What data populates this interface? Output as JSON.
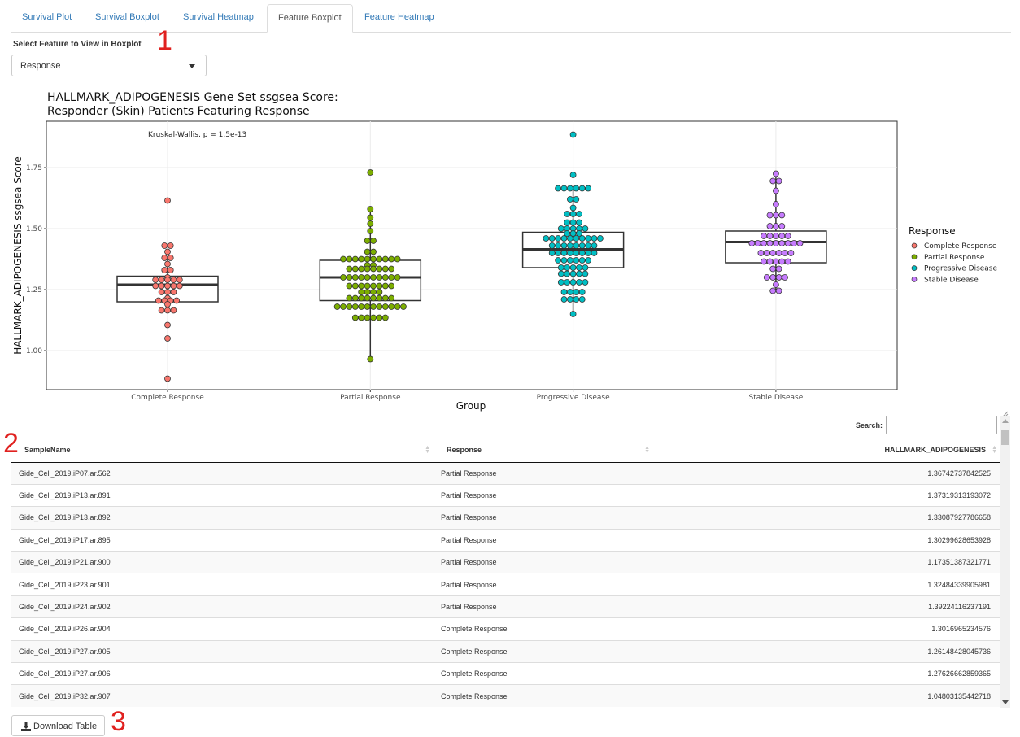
{
  "tabs": [
    {
      "label": "Survival Plot"
    },
    {
      "label": "Survival Boxplot"
    },
    {
      "label": "Survival Heatmap"
    },
    {
      "label": "Feature Boxplot"
    },
    {
      "label": "Feature Heatmap"
    }
  ],
  "active_tab": "Feature Boxplot",
  "feature_select": {
    "label": "Select Feature to View in Boxplot",
    "value": "Response"
  },
  "annotations": [
    "1",
    "2",
    "3"
  ],
  "chart_data": {
    "type": "boxplot+beeswarm",
    "title_line1": "HALLMARK_ADIPOGENESIS Gene Set ssgsea Score:",
    "title_line2": "Responder (Skin) Patients Featuring Response",
    "xlabel": "Group",
    "ylabel": "HALLMARK_ADIPOGENESIS ssgsea Score",
    "stat_annotation": "Kruskal-Wallis, p = 1.5e-13",
    "ylim": [
      0.84,
      1.94
    ],
    "yticks": [
      "1.00",
      "1.25",
      "1.50",
      "1.75"
    ],
    "grid": true,
    "legend_title": "Response",
    "legend_position": "right",
    "categories": [
      "Complete Response",
      "Partial Response",
      "Progressive Disease",
      "Stable Disease"
    ],
    "colors": [
      "#f8766d",
      "#7cae00",
      "#00bfc4",
      "#c77cff"
    ],
    "boxes": [
      {
        "q1": 1.2,
        "median": 1.27,
        "q3": 1.305,
        "lower": 1.165,
        "upper": 1.38
      },
      {
        "q1": 1.205,
        "median": 1.3,
        "q3": 1.37,
        "lower": 0.97,
        "upper": 1.58
      },
      {
        "q1": 1.34,
        "median": 1.415,
        "q3": 1.485,
        "lower": 1.15,
        "upper": 1.66
      },
      {
        "q1": 1.36,
        "median": 1.445,
        "q3": 1.49,
        "lower": 1.245,
        "upper": 1.72
      }
    ],
    "points": [
      [
        1.615,
        1.43,
        1.43,
        1.405,
        1.38,
        1.38,
        1.355,
        1.33,
        1.33,
        1.3,
        1.29,
        1.29,
        1.29,
        1.29,
        1.29,
        1.265,
        1.265,
        1.265,
        1.265,
        1.265,
        1.24,
        1.24,
        1.24,
        1.215,
        1.205,
        1.205,
        1.205,
        1.205,
        1.19,
        1.165,
        1.165,
        1.165,
        1.105,
        1.05,
        0.885
      ],
      [
        1.73,
        1.58,
        1.545,
        1.52,
        1.49,
        1.45,
        1.45,
        1.405,
        1.405,
        1.375,
        1.375,
        1.375,
        1.375,
        1.375,
        1.375,
        1.375,
        1.375,
        1.375,
        1.375,
        1.35,
        1.35,
        1.335,
        1.335,
        1.335,
        1.335,
        1.335,
        1.335,
        1.335,
        1.335,
        1.3,
        1.3,
        1.3,
        1.3,
        1.3,
        1.3,
        1.3,
        1.3,
        1.3,
        1.3,
        1.265,
        1.265,
        1.265,
        1.265,
        1.265,
        1.265,
        1.265,
        1.265,
        1.24,
        1.24,
        1.24,
        1.24,
        1.215,
        1.215,
        1.215,
        1.215,
        1.215,
        1.215,
        1.215,
        1.215,
        1.18,
        1.18,
        1.18,
        1.18,
        1.18,
        1.18,
        1.18,
        1.18,
        1.18,
        1.18,
        1.18,
        1.18,
        1.135,
        1.135,
        1.135,
        1.135,
        1.135,
        1.135,
        0.965
      ],
      [
        1.885,
        1.72,
        1.665,
        1.665,
        1.665,
        1.665,
        1.665,
        1.665,
        1.62,
        1.62,
        1.585,
        1.56,
        1.56,
        1.56,
        1.525,
        1.525,
        1.525,
        1.5,
        1.5,
        1.5,
        1.5,
        1.5,
        1.48,
        1.48,
        1.48,
        1.46,
        1.46,
        1.46,
        1.46,
        1.46,
        1.46,
        1.46,
        1.46,
        1.46,
        1.46,
        1.43,
        1.43,
        1.43,
        1.43,
        1.43,
        1.43,
        1.43,
        1.43,
        1.4,
        1.4,
        1.4,
        1.4,
        1.4,
        1.4,
        1.4,
        1.4,
        1.37,
        1.37,
        1.37,
        1.37,
        1.37,
        1.37,
        1.34,
        1.34,
        1.34,
        1.34,
        1.34,
        1.315,
        1.315,
        1.315,
        1.315,
        1.315,
        1.28,
        1.28,
        1.28,
        1.28,
        1.28,
        1.24,
        1.24,
        1.24,
        1.24,
        1.21,
        1.21,
        1.21,
        1.21,
        1.15
      ],
      [
        1.725,
        1.695,
        1.695,
        1.655,
        1.6,
        1.555,
        1.555,
        1.555,
        1.51,
        1.51,
        1.51,
        1.47,
        1.47,
        1.47,
        1.47,
        1.47,
        1.44,
        1.44,
        1.44,
        1.44,
        1.44,
        1.44,
        1.44,
        1.44,
        1.44,
        1.4,
        1.4,
        1.4,
        1.4,
        1.4,
        1.4,
        1.365,
        1.365,
        1.365,
        1.365,
        1.365,
        1.335,
        1.335,
        1.3,
        1.3,
        1.3,
        1.3,
        1.27,
        1.245,
        1.245
      ]
    ]
  },
  "table": {
    "search_label": "Search:",
    "search_value": "",
    "columns": [
      "SampleName",
      "Response",
      "HALLMARK_ADIPOGENESIS"
    ],
    "rows": [
      [
        "Gide_Cell_2019.iP07.ar.562",
        "Partial Response",
        "1.36742737842525"
      ],
      [
        "Gide_Cell_2019.iP13.ar.891",
        "Partial Response",
        "1.37319313193072"
      ],
      [
        "Gide_Cell_2019.iP13.ar.892",
        "Partial Response",
        "1.33087927786658"
      ],
      [
        "Gide_Cell_2019.iP17.ar.895",
        "Partial Response",
        "1.30299628653928"
      ],
      [
        "Gide_Cell_2019.iP21.ar.900",
        "Partial Response",
        "1.17351387321771"
      ],
      [
        "Gide_Cell_2019.iP23.ar.901",
        "Partial Response",
        "1.32484339905981"
      ],
      [
        "Gide_Cell_2019.iP24.ar.902",
        "Partial Response",
        "1.39224116237191"
      ],
      [
        "Gide_Cell_2019.iP26.ar.904",
        "Complete Response",
        "1.3016965234576"
      ],
      [
        "Gide_Cell_2019.iP27.ar.905",
        "Complete Response",
        "1.26148428045736"
      ],
      [
        "Gide_Cell_2019.iP27.ar.906",
        "Complete Response",
        "1.27626662859365"
      ],
      [
        "Gide_Cell_2019.iP32.ar.907",
        "Complete Response",
        "1.04803135442718"
      ]
    ]
  },
  "download_button": {
    "label": "Download Table"
  }
}
